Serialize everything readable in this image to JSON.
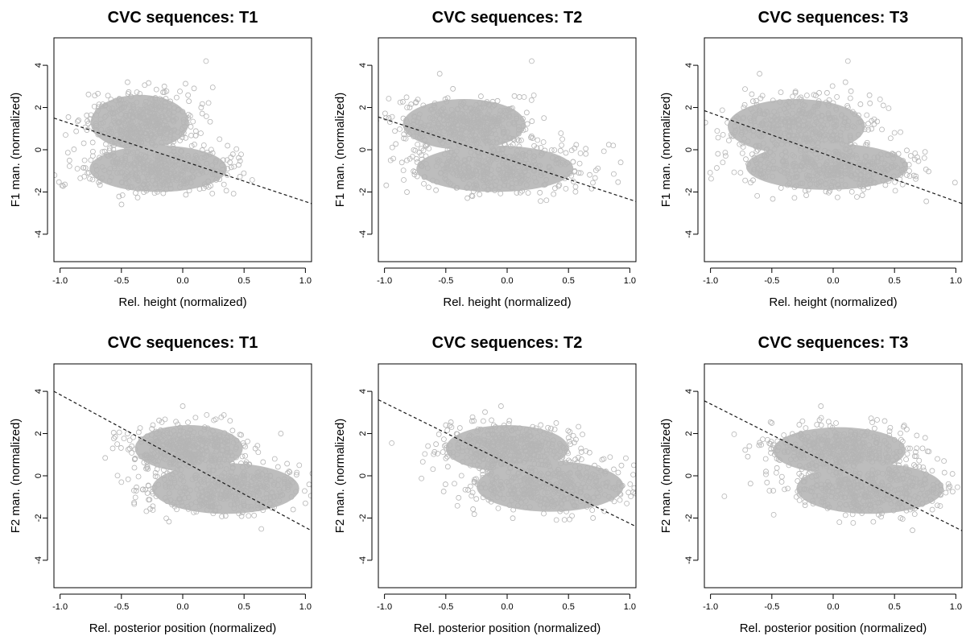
{
  "colors": {
    "points": "#b5b5b5",
    "fill": "#bdbdbd",
    "fit_line": "#1a1a1a"
  },
  "chart_data": [
    {
      "type": "scatter",
      "title": "CVC sequences: T1",
      "xlabel": "Rel. height (normalized)",
      "ylabel": "F1 man. (normalized)",
      "xlim": [
        -1.05,
        1.05
      ],
      "ylim": [
        -5.3,
        5.3
      ],
      "xticks": [
        -1.0,
        -0.5,
        0.0,
        0.5,
        1.0
      ],
      "xtick_labels": [
        "-1.0",
        "-0.5",
        "0.0",
        "0.5",
        "1.0"
      ],
      "yticks": [
        -4,
        -2,
        0,
        2,
        4
      ],
      "ytick_labels": [
        "-4",
        "-2",
        "0",
        "2",
        "4"
      ],
      "fit_line": {
        "x": [
          -1.05,
          1.05
        ],
        "y": [
          1.5,
          -2.55
        ]
      },
      "clusters": [
        {
          "cx": -0.35,
          "cy": 1.3,
          "sx": 0.2,
          "sy": 0.65
        },
        {
          "cx": -0.2,
          "cy": -0.9,
          "sx": 0.28,
          "sy": 0.55
        }
      ],
      "outliers": [
        [
          0.19,
          4.2
        ],
        [
          -0.45,
          3.2
        ],
        [
          -0.15,
          3.0
        ],
        [
          0.05,
          2.3
        ],
        [
          0.3,
          -1.4
        ],
        [
          0.3,
          0.5
        ],
        [
          -0.8,
          -0.5
        ],
        [
          0.15,
          2.0
        ]
      ],
      "grid": false
    },
    {
      "type": "scatter",
      "title": "CVC sequences: T2",
      "xlabel": "Rel. height (normalized)",
      "ylabel": "F1 man. (normalized)",
      "xlim": [
        -1.05,
        1.05
      ],
      "ylim": [
        -5.3,
        5.3
      ],
      "xticks": [
        -1.0,
        -0.5,
        0.0,
        0.5,
        1.0
      ],
      "xtick_labels": [
        "-1.0",
        "-0.5",
        "0.0",
        "0.5",
        "1.0"
      ],
      "yticks": [
        -4,
        -2,
        0,
        2,
        4
      ],
      "ytick_labels": [
        "-4",
        "-2",
        "0",
        "2",
        "4"
      ],
      "fit_line": {
        "x": [
          -1.05,
          1.05
        ],
        "y": [
          1.55,
          -2.45
        ]
      },
      "clusters": [
        {
          "cx": -0.35,
          "cy": 1.2,
          "sx": 0.25,
          "sy": 0.6
        },
        {
          "cx": -0.1,
          "cy": -0.9,
          "sx": 0.32,
          "sy": 0.55
        }
      ],
      "outliers": [
        [
          0.2,
          4.2
        ],
        [
          -0.55,
          3.6
        ],
        [
          0.55,
          -1.0
        ],
        [
          0.6,
          -1.1
        ],
        [
          0.1,
          2.5
        ],
        [
          0.3,
          1.5
        ],
        [
          -0.95,
          -0.5
        ],
        [
          0.45,
          0.5
        ]
      ],
      "grid": false
    },
    {
      "type": "scatter",
      "title": "CVC sequences: T3",
      "xlabel": "Rel. height (normalized)",
      "ylabel": "F1 man. (normalized)",
      "xlim": [
        -1.05,
        1.05
      ],
      "ylim": [
        -5.3,
        5.3
      ],
      "xticks": [
        -1.0,
        -0.5,
        0.0,
        0.5,
        1.0
      ],
      "xtick_labels": [
        "-1.0",
        "-0.5",
        "0.0",
        "0.5",
        "1.0"
      ],
      "yticks": [
        -4,
        -2,
        0,
        2,
        4
      ],
      "ytick_labels": [
        "-4",
        "-2",
        "0",
        "2",
        "4"
      ],
      "fit_line": {
        "x": [
          -1.05,
          1.05
        ],
        "y": [
          1.85,
          -2.55
        ]
      },
      "clusters": [
        {
          "cx": -0.3,
          "cy": 1.1,
          "sx": 0.28,
          "sy": 0.65
        },
        {
          "cx": -0.05,
          "cy": -0.8,
          "sx": 0.33,
          "sy": 0.55
        }
      ],
      "outliers": [
        [
          0.12,
          4.2
        ],
        [
          -0.6,
          3.6
        ],
        [
          0.1,
          3.2
        ],
        [
          0.62,
          -1.0
        ],
        [
          0.6,
          -1.2
        ],
        [
          0.5,
          0.8
        ],
        [
          -0.9,
          -0.6
        ],
        [
          0.3,
          2.2
        ]
      ],
      "grid": false
    },
    {
      "type": "scatter",
      "title": "CVC sequences: T1",
      "xlabel": "Rel. posterior position (normalized)",
      "ylabel": "F2 man. (normalized)",
      "xlim": [
        -1.05,
        1.05
      ],
      "ylim": [
        -5.3,
        5.3
      ],
      "xticks": [
        -1.0,
        -0.5,
        0.0,
        0.5,
        1.0
      ],
      "xtick_labels": [
        "-1.0",
        "-0.5",
        "0.0",
        "0.5",
        "1.0"
      ],
      "yticks": [
        -4,
        -2,
        0,
        2,
        4
      ],
      "ytick_labels": [
        "-4",
        "-2",
        "0",
        "2",
        "4"
      ],
      "fit_line": {
        "x": [
          -1.05,
          1.05
        ],
        "y": [
          4.0,
          -2.6
        ]
      },
      "clusters": [
        {
          "cx": 0.05,
          "cy": 1.3,
          "sx": 0.22,
          "sy": 0.55
        },
        {
          "cx": 0.35,
          "cy": -0.6,
          "sx": 0.3,
          "sy": 0.6
        }
      ],
      "outliers": [
        [
          0.0,
          3.3
        ],
        [
          0.95,
          0.5
        ],
        [
          1.0,
          -1.3
        ],
        [
          0.75,
          0.8
        ],
        [
          -0.5,
          -0.3
        ],
        [
          -0.45,
          2.0
        ],
        [
          0.8,
          2.0
        ],
        [
          0.9,
          -1.6
        ]
      ],
      "grid": false
    },
    {
      "type": "scatter",
      "title": "CVC sequences: T2",
      "xlabel": "Rel. posterior position (normalized)",
      "ylabel": "F2 man. (normalized)",
      "xlim": [
        -1.05,
        1.05
      ],
      "ylim": [
        -5.3,
        5.3
      ],
      "xticks": [
        -1.0,
        -0.5,
        0.0,
        0.5,
        1.0
      ],
      "xtick_labels": [
        "-1.0",
        "-0.5",
        "0.0",
        "0.5",
        "1.0"
      ],
      "yticks": [
        -4,
        -2,
        0,
        2,
        4
      ],
      "ytick_labels": [
        "-4",
        "-2",
        "0",
        "2",
        "4"
      ],
      "fit_line": {
        "x": [
          -1.05,
          1.05
        ],
        "y": [
          3.6,
          -2.4
        ]
      },
      "clusters": [
        {
          "cx": 0.0,
          "cy": 1.3,
          "sx": 0.25,
          "sy": 0.55
        },
        {
          "cx": 0.35,
          "cy": -0.5,
          "sx": 0.3,
          "sy": 0.6
        }
      ],
      "outliers": [
        [
          -0.05,
          3.3
        ],
        [
          0.85,
          -1.1
        ],
        [
          -0.5,
          2.4
        ],
        [
          0.5,
          1.8
        ],
        [
          -0.3,
          -0.5
        ],
        [
          0.7,
          -2.0
        ],
        [
          0.4,
          2.5
        ],
        [
          0.8,
          0.1
        ]
      ],
      "grid": false
    },
    {
      "type": "scatter",
      "title": "CVC sequences: T3",
      "xlabel": "Rel. posterior position (normalized)",
      "ylabel": "F2 man. (normalized)",
      "xlim": [
        -1.05,
        1.05
      ],
      "ylim": [
        -5.3,
        5.3
      ],
      "xticks": [
        -1.0,
        -0.5,
        0.0,
        0.5,
        1.0
      ],
      "xtick_labels": [
        "-1.0",
        "-0.5",
        "0.0",
        "0.5",
        "1.0"
      ],
      "yticks": [
        -4,
        -2,
        0,
        2,
        4
      ],
      "ytick_labels": [
        "-4",
        "-2",
        "0",
        "2",
        "4"
      ],
      "fit_line": {
        "x": [
          -1.05,
          1.05
        ],
        "y": [
          3.55,
          -2.6
        ]
      },
      "clusters": [
        {
          "cx": 0.05,
          "cy": 1.2,
          "sx": 0.27,
          "sy": 0.55
        },
        {
          "cx": 0.3,
          "cy": -0.6,
          "sx": 0.3,
          "sy": 0.6
        }
      ],
      "outliers": [
        [
          -0.1,
          3.3
        ],
        [
          0.85,
          0.8
        ],
        [
          -0.5,
          2.5
        ],
        [
          0.85,
          -1.4
        ],
        [
          0.6,
          2.2
        ],
        [
          -0.55,
          0.8
        ],
        [
          0.55,
          -2.0
        ],
        [
          0.75,
          1.8
        ]
      ],
      "grid": false
    }
  ]
}
